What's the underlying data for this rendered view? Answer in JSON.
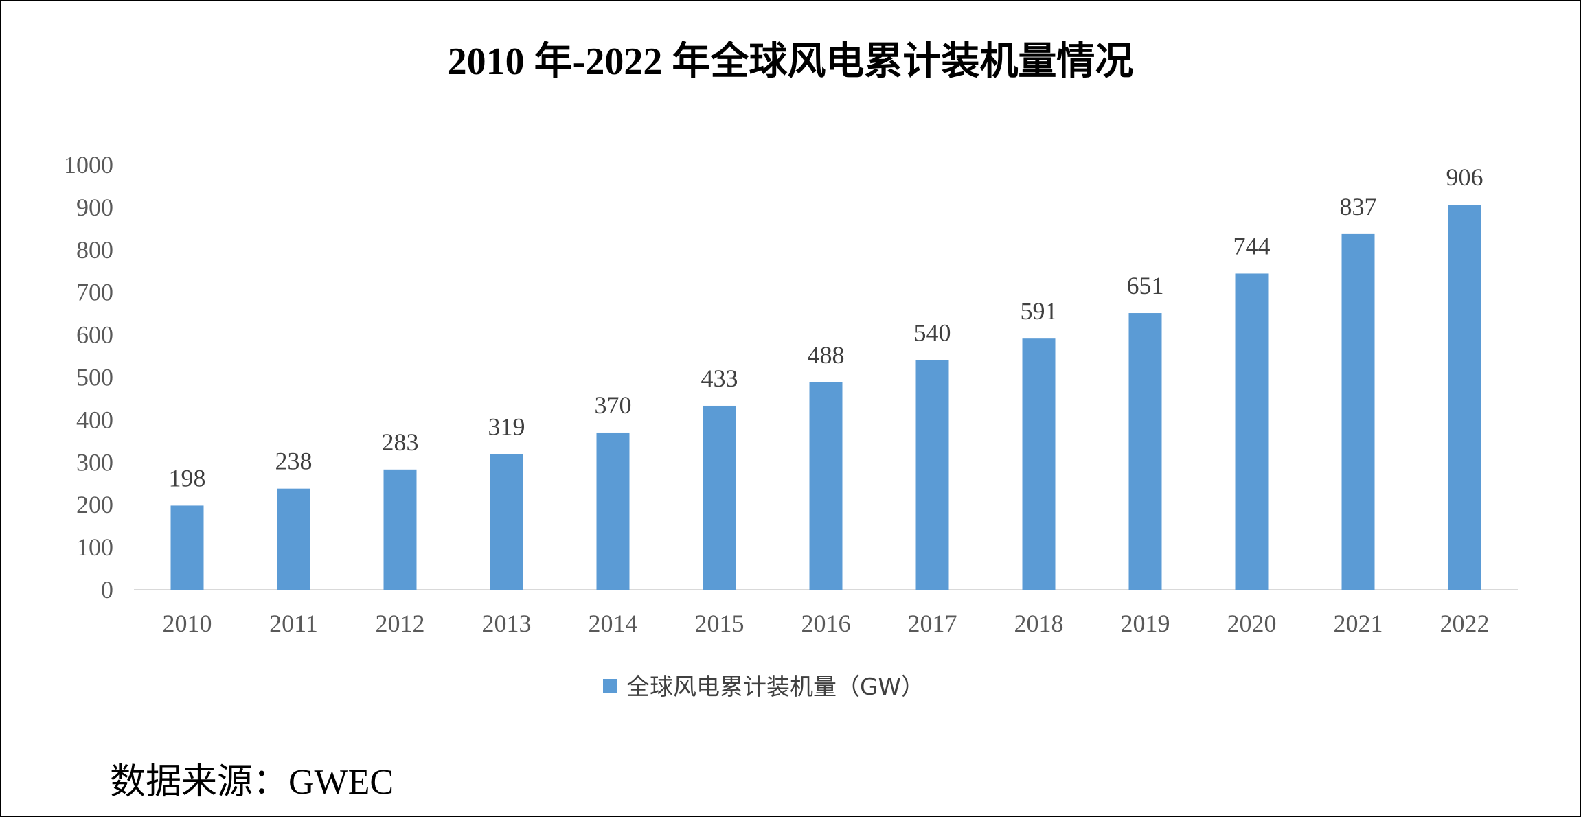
{
  "chart_data": {
    "type": "bar",
    "title": "2010 年-2022 年全球风电累计装机量情况",
    "categories": [
      "2010",
      "2011",
      "2012",
      "2013",
      "2014",
      "2015",
      "2016",
      "2017",
      "2018",
      "2019",
      "2020",
      "2021",
      "2022"
    ],
    "series": [
      {
        "name": "全球风电累计装机量（GW）",
        "values": [
          198,
          238,
          283,
          319,
          370,
          433,
          488,
          540,
          591,
          651,
          744,
          837,
          906
        ],
        "color": "#5B9BD5"
      }
    ],
    "yticks": [
      "0",
      "100",
      "200",
      "300",
      "400",
      "500",
      "600",
      "700",
      "800",
      "900",
      "1000"
    ],
    "ylim": [
      0,
      1000
    ],
    "xlabel": "",
    "ylabel": "",
    "grid": false,
    "data_labels": true,
    "legend_position": "bottom"
  },
  "source": "数据来源：GWEC"
}
